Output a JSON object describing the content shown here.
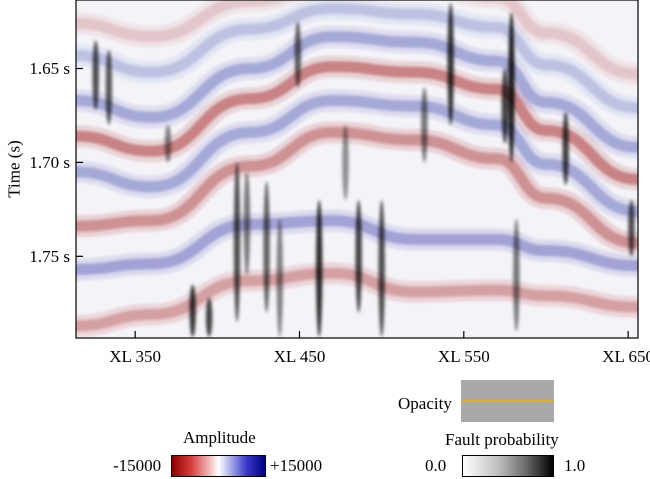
{
  "chart_data": {
    "type": "heatmap",
    "ylabel": "Time (s)",
    "y_ticks": [
      {
        "value": 1.65,
        "label": "1.65 s"
      },
      {
        "value": 1.7,
        "label": "1.70 s"
      },
      {
        "value": 1.75,
        "label": "1.75 s"
      }
    ],
    "x_ticks": [
      {
        "value": 350,
        "label": "XL 350"
      },
      {
        "value": 450,
        "label": "XL 450"
      },
      {
        "value": 550,
        "label": "XL 550"
      },
      {
        "value": 650,
        "label": "XL 650"
      }
    ],
    "xlim": [
      314,
      656
    ],
    "ylim": [
      1.6135,
      1.7935
    ],
    "reflectors": [
      {
        "polarity": "negative",
        "strength": 0.75,
        "time": [
          [
            314,
            1.686
          ],
          [
            360,
            1.694
          ],
          [
            420,
            1.666
          ],
          [
            470,
            1.649
          ],
          [
            520,
            1.652
          ],
          [
            570,
            1.661
          ],
          [
            600,
            1.683
          ],
          [
            656,
            1.709
          ]
        ]
      },
      {
        "polarity": "positive",
        "strength": 0.55,
        "time": [
          [
            314,
            1.667
          ],
          [
            360,
            1.676
          ],
          [
            420,
            1.65
          ],
          [
            470,
            1.633
          ],
          [
            520,
            1.636
          ],
          [
            570,
            1.646
          ],
          [
            600,
            1.668
          ],
          [
            656,
            1.692
          ]
        ]
      },
      {
        "polarity": "positive",
        "strength": 0.55,
        "time": [
          [
            314,
            1.705
          ],
          [
            360,
            1.713
          ],
          [
            420,
            1.684
          ],
          [
            470,
            1.667
          ],
          [
            520,
            1.67
          ],
          [
            570,
            1.68
          ],
          [
            600,
            1.701
          ],
          [
            656,
            1.726
          ]
        ]
      },
      {
        "polarity": "negative",
        "strength": 0.65,
        "time": [
          [
            314,
            1.734
          ],
          [
            360,
            1.731
          ],
          [
            420,
            1.702
          ],
          [
            470,
            1.684
          ],
          [
            520,
            1.688
          ],
          [
            570,
            1.698
          ],
          [
            600,
            1.719
          ],
          [
            656,
            1.743
          ]
        ]
      },
      {
        "polarity": "positive",
        "strength": 0.6,
        "time": [
          [
            314,
            1.757
          ],
          [
            360,
            1.754
          ],
          [
            420,
            1.733
          ],
          [
            470,
            1.731
          ],
          [
            520,
            1.741
          ],
          [
            570,
            1.741
          ],
          [
            600,
            1.747
          ],
          [
            656,
            1.755
          ]
        ]
      },
      {
        "polarity": "negative",
        "strength": 0.55,
        "time": [
          [
            314,
            1.787
          ],
          [
            360,
            1.781
          ],
          [
            420,
            1.763
          ],
          [
            470,
            1.759
          ],
          [
            520,
            1.769
          ],
          [
            570,
            1.768
          ],
          [
            600,
            1.771
          ],
          [
            656,
            1.777
          ]
        ]
      },
      {
        "polarity": "positive",
        "strength": 0.35,
        "time": [
          [
            314,
            1.643
          ],
          [
            360,
            1.652
          ],
          [
            420,
            1.629
          ],
          [
            470,
            1.618
          ],
          [
            520,
            1.621
          ],
          [
            570,
            1.628
          ],
          [
            600,
            1.648
          ],
          [
            656,
            1.671
          ]
        ]
      },
      {
        "polarity": "negative",
        "strength": 0.3,
        "time": [
          [
            314,
            1.626
          ],
          [
            360,
            1.633
          ],
          [
            420,
            1.614
          ],
          [
            470,
            1.605
          ],
          [
            520,
            1.606
          ],
          [
            570,
            1.612
          ],
          [
            600,
            1.631
          ],
          [
            656,
            1.653
          ]
        ]
      }
    ],
    "faults": [
      {
        "xl": 326,
        "t0": 1.635,
        "t1": 1.672,
        "p": 0.8
      },
      {
        "xl": 334,
        "t0": 1.64,
        "t1": 1.68,
        "p": 0.75
      },
      {
        "xl": 370,
        "t0": 1.68,
        "t1": 1.7,
        "p": 0.55
      },
      {
        "xl": 385,
        "t0": 1.765,
        "t1": 1.793,
        "p": 0.9
      },
      {
        "xl": 395,
        "t0": 1.772,
        "t1": 1.793,
        "p": 0.85
      },
      {
        "xl": 412,
        "t0": 1.7,
        "t1": 1.785,
        "p": 0.8
      },
      {
        "xl": 418,
        "t0": 1.705,
        "t1": 1.76,
        "p": 0.6
      },
      {
        "xl": 430,
        "t0": 1.71,
        "t1": 1.78,
        "p": 0.7
      },
      {
        "xl": 438,
        "t0": 1.73,
        "t1": 1.793,
        "p": 0.55
      },
      {
        "xl": 449,
        "t0": 1.625,
        "t1": 1.66,
        "p": 0.7
      },
      {
        "xl": 462,
        "t0": 1.72,
        "t1": 1.793,
        "p": 0.95
      },
      {
        "xl": 478,
        "t0": 1.68,
        "t1": 1.72,
        "p": 0.5
      },
      {
        "xl": 486,
        "t0": 1.72,
        "t1": 1.78,
        "p": 0.85
      },
      {
        "xl": 500,
        "t0": 1.72,
        "t1": 1.793,
        "p": 0.8
      },
      {
        "xl": 526,
        "t0": 1.66,
        "t1": 1.7,
        "p": 0.6
      },
      {
        "xl": 542,
        "t0": 1.615,
        "t1": 1.68,
        "p": 0.9
      },
      {
        "xl": 579,
        "t0": 1.62,
        "t1": 1.7,
        "p": 1.0
      },
      {
        "xl": 575,
        "t0": 1.65,
        "t1": 1.69,
        "p": 0.85
      },
      {
        "xl": 582,
        "t0": 1.73,
        "t1": 1.79,
        "p": 0.6
      },
      {
        "xl": 612,
        "t0": 1.673,
        "t1": 1.712,
        "p": 0.85
      },
      {
        "xl": 652,
        "t0": 1.72,
        "t1": 1.75,
        "p": 0.8
      }
    ],
    "colors": {
      "negative": "#a11d1d",
      "positive": "#2a2fa6",
      "fault": "#000000",
      "opacity_line": "#e8b00c",
      "opacity_bg": "#a9a9a9"
    }
  },
  "legend": {
    "opacity_label": "Opacity",
    "amplitude_title": "Amplitude",
    "amplitude_min": "-15000",
    "amplitude_max": "+15000",
    "fault_title": "Fault probability",
    "fault_min": "0.0",
    "fault_max": "1.0"
  }
}
